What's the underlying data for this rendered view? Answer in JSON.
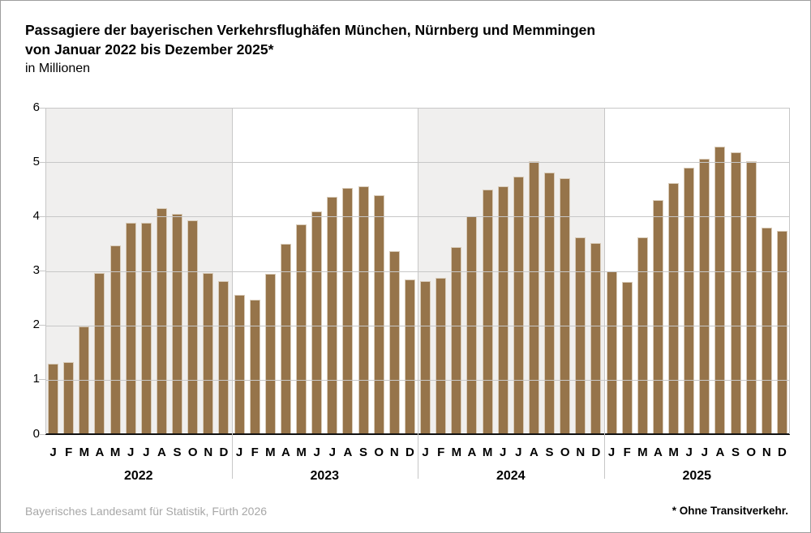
{
  "title": {
    "line1": "Passagiere der bayerischen Verkehrsflughäfen München, Nürnberg und Memmingen",
    "line2": "von Januar 2022 bis Dezember 2025*",
    "subtitle": "in Millionen"
  },
  "footer": {
    "source": "Bayerisches Landesamt für Statistik, Fürth 2026",
    "note": "* Ohne Transitverkehr."
  },
  "colors": {
    "bar_fill": "#96744a",
    "bar_edge": "#d9ccba",
    "panel_shade": "#f0efee",
    "gridline": "#c7c7c7",
    "baseline": "#111111",
    "source_text": "#a7a7a7"
  },
  "chart_data": {
    "type": "bar",
    "title": "Passagiere der bayerischen Verkehrsflughäfen München, Nürnberg und Memmingen von Januar 2022 bis Dezember 2025*",
    "ylabel": "in Millionen",
    "ylim": [
      0,
      6
    ],
    "yticks": [
      0,
      1,
      2,
      3,
      4,
      5,
      6
    ],
    "grid": "horizontal",
    "legend": "none",
    "months": [
      "J",
      "F",
      "M",
      "A",
      "M",
      "J",
      "J",
      "A",
      "S",
      "O",
      "N",
      "D"
    ],
    "series": [
      {
        "name": "2022",
        "shaded": true,
        "values": [
          1.3,
          1.32,
          1.98,
          2.97,
          3.47,
          3.88,
          3.88,
          4.15,
          4.05,
          3.93,
          2.96,
          2.81
        ]
      },
      {
        "name": "2023",
        "shaded": false,
        "values": [
          2.56,
          2.47,
          2.95,
          3.5,
          3.86,
          4.1,
          4.36,
          4.52,
          4.55,
          4.4,
          3.37,
          2.85
        ]
      },
      {
        "name": "2024",
        "shaded": true,
        "values": [
          2.81,
          2.88,
          3.44,
          4.0,
          4.49,
          4.55,
          4.74,
          5.02,
          4.81,
          4.71,
          3.62,
          3.52
        ]
      },
      {
        "name": "2025",
        "shaded": false,
        "values": [
          3.0,
          2.8,
          3.62,
          4.31,
          4.62,
          4.9,
          5.06,
          5.29,
          5.18,
          5.02,
          3.79,
          3.74
        ]
      }
    ]
  }
}
